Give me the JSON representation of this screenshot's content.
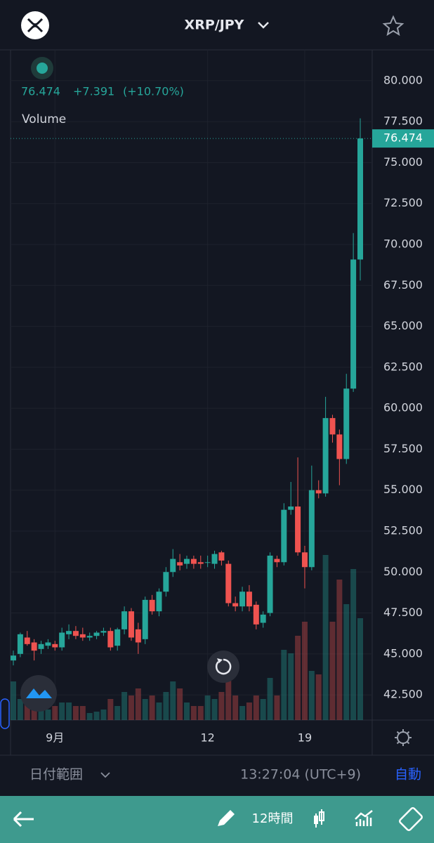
{
  "header": {
    "symbol": "XRP/JPY"
  },
  "legend": {
    "last": "76.474",
    "change": "+7.391",
    "change_pct": "(+10.70%)",
    "volume_label": "Volume"
  },
  "chart_data": {
    "type": "candlestick",
    "categories": [
      null,
      null,
      null,
      null,
      null,
      null,
      "9月",
      null,
      null,
      null,
      null,
      null,
      null,
      null,
      null,
      null,
      null,
      null,
      null,
      null,
      null,
      null,
      null,
      null,
      null,
      null,
      null,
      null,
      "12",
      null,
      null,
      null,
      null,
      null,
      null,
      null,
      null,
      null,
      null,
      null,
      null,
      null,
      "19",
      null,
      null,
      null,
      null,
      null,
      null,
      null,
      null
    ],
    "open": [
      44.6,
      45.0,
      46.0,
      45.7,
      45.3,
      45.5,
      45.6,
      45.4,
      46.2,
      46.4,
      46.2,
      46.0,
      46.1,
      46.3,
      46.4,
      45.5,
      46.5,
      47.6,
      46.5,
      45.9,
      48.3,
      47.6,
      48.8,
      50.0,
      50.6,
      50.5,
      50.8,
      50.6,
      50.6,
      50.5,
      51.2,
      50.5,
      48.1,
      47.9,
      48.8,
      48.0,
      46.9,
      47.5,
      50.8,
      50.6,
      53.8,
      54.0,
      51.2,
      50.3,
      55.0,
      54.8,
      59.4,
      58.4,
      56.9,
      61.2,
      69.083
    ],
    "high": [
      45.2,
      46.3,
      46.4,
      45.9,
      45.8,
      45.9,
      45.8,
      46.6,
      46.8,
      46.7,
      46.6,
      46.3,
      46.4,
      46.6,
      46.6,
      46.6,
      47.9,
      47.8,
      46.9,
      48.5,
      48.6,
      49.0,
      50.3,
      51.4,
      51.1,
      51.0,
      51.0,
      51.0,
      51.0,
      51.3,
      51.3,
      50.7,
      48.5,
      49.1,
      49.2,
      48.2,
      47.6,
      51.2,
      51.0,
      54.2,
      55.5,
      57.0,
      51.6,
      56.5,
      55.6,
      60.7,
      59.6,
      58.7,
      62.1,
      70.7,
      77.7
    ],
    "low": [
      44.3,
      44.8,
      45.5,
      44.6,
      45.0,
      45.3,
      45.2,
      45.2,
      45.9,
      45.9,
      45.8,
      45.8,
      45.9,
      46.1,
      45.2,
      45.2,
      46.2,
      45.8,
      45.0,
      45.6,
      47.4,
      47.3,
      48.5,
      49.7,
      50.1,
      50.2,
      50.2,
      50.2,
      50.3,
      50.2,
      50.4,
      47.9,
      47.6,
      47.6,
      47.6,
      46.5,
      46.6,
      47.3,
      50.3,
      50.4,
      53.5,
      51.0,
      49.0,
      50.1,
      54.5,
      54.6,
      57.9,
      55.3,
      56.6,
      61.0,
      67.8
    ],
    "close": [
      44.9,
      46.2,
      45.6,
      45.2,
      45.6,
      45.7,
      45.4,
      46.3,
      46.4,
      46.1,
      46.0,
      46.1,
      46.3,
      46.4,
      45.4,
      46.5,
      47.6,
      46.0,
      45.7,
      48.3,
      47.6,
      48.8,
      50.0,
      50.8,
      50.4,
      50.8,
      50.5,
      50.5,
      50.6,
      51.1,
      50.7,
      48.1,
      47.9,
      48.8,
      47.9,
      46.8,
      47.4,
      51.0,
      50.6,
      53.8,
      54.0,
      51.2,
      50.3,
      55.0,
      54.8,
      59.4,
      58.4,
      56.9,
      61.2,
      69.083,
      76.474
    ],
    "volumes": [
      55,
      30,
      25,
      20,
      25,
      15,
      20,
      25,
      25,
      20,
      20,
      10,
      12,
      15,
      30,
      20,
      40,
      35,
      45,
      30,
      35,
      25,
      40,
      55,
      45,
      25,
      20,
      20,
      35,
      30,
      40,
      60,
      35,
      20,
      25,
      35,
      30,
      60,
      35,
      100,
      95,
      120,
      140,
      70,
      65,
      235,
      140,
      200,
      165,
      215,
      145
    ],
    "vlim": [
      0,
      250
    ],
    "ylim": [
      40.96,
      81.84
    ],
    "yticks": [
      {
        "value": 42.5,
        "label": "42.500"
      },
      {
        "value": 45,
        "label": "45.000"
      },
      {
        "value": 47.5,
        "label": "47.500"
      },
      {
        "value": 50,
        "label": "50.000"
      },
      {
        "value": 52.5,
        "label": "52.500"
      },
      {
        "value": 55,
        "label": "55.000"
      },
      {
        "value": 57.5,
        "label": "57.500"
      },
      {
        "value": 60,
        "label": "60.000"
      },
      {
        "value": 62.5,
        "label": "62.500"
      },
      {
        "value": 65,
        "label": "65.000"
      },
      {
        "value": 67.5,
        "label": "67.500"
      },
      {
        "value": 70,
        "label": "70.000"
      },
      {
        "value": 72.5,
        "label": "72.500"
      },
      {
        "value": 75,
        "label": "75.000"
      },
      {
        "value": 77.5,
        "label": "77.500"
      },
      {
        "value": 80,
        "label": "80.000"
      }
    ],
    "last_price": {
      "value": 76.474,
      "label": "76.474"
    },
    "up_color": "#26a69a",
    "down_color": "#ef5350",
    "grid": true
  },
  "footer": {
    "range": "日付範囲",
    "time": "13:27:04 (UTC+9)",
    "scale": "自動"
  },
  "toolbar": {
    "interval": "12時間"
  }
}
